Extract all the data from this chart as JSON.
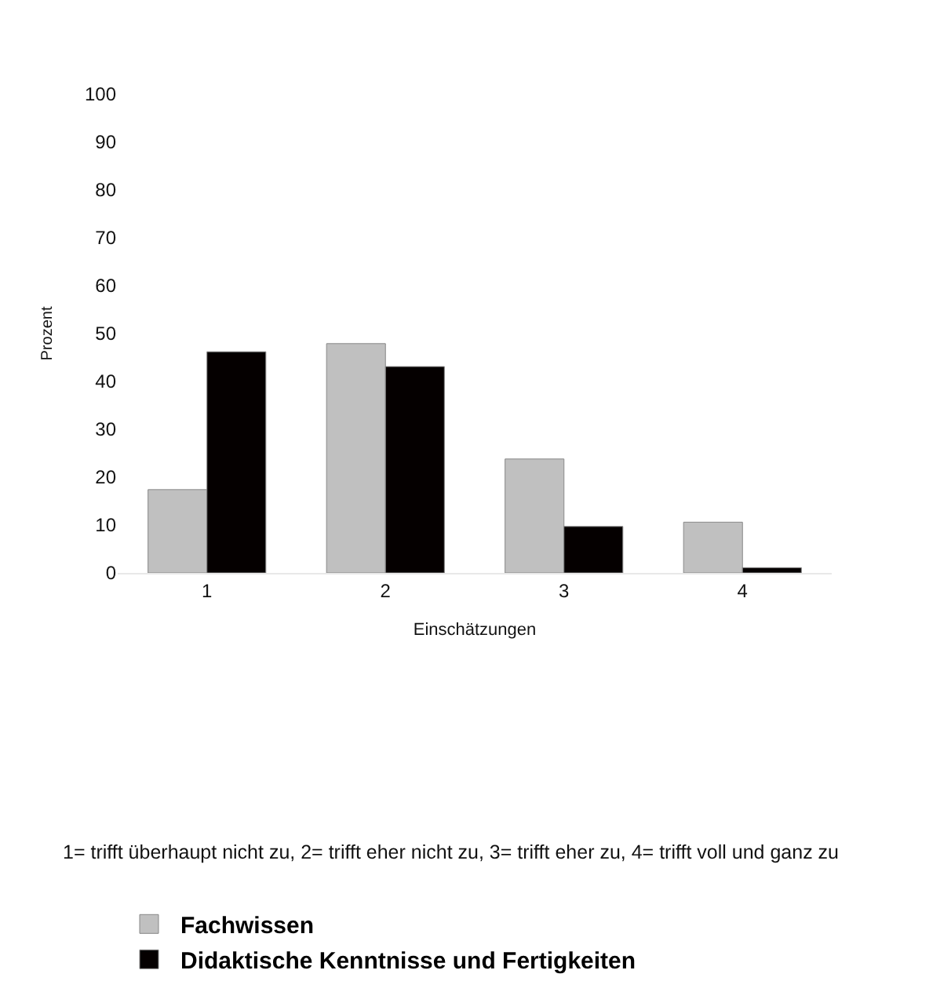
{
  "chart_data": {
    "type": "bar",
    "xlabel": "Einschätzungen",
    "ylabel": "Prozent",
    "categories": [
      "1",
      "2",
      "3",
      "4"
    ],
    "series": [
      {
        "name": "Fachwissen",
        "color": "#c0c0c0",
        "values": [
          17.4,
          47.9,
          23.8,
          10.6
        ]
      },
      {
        "name": "Didaktische Kenntnisse und Fertigkeiten",
        "color": "#050000",
        "values": [
          46.2,
          43.1,
          9.7,
          1.1
        ]
      }
    ],
    "ylim": [
      0,
      100
    ],
    "yticks": [
      0,
      10,
      20,
      30,
      40,
      50,
      60,
      70,
      80,
      90,
      100
    ],
    "grid": false,
    "legend": "bottom left",
    "annotations": [
      "1= trifft überhaupt nicht zu, 2= trifft eher nicht zu, 3= trifft eher zu, 4= trifft voll und ganz zu"
    ]
  }
}
